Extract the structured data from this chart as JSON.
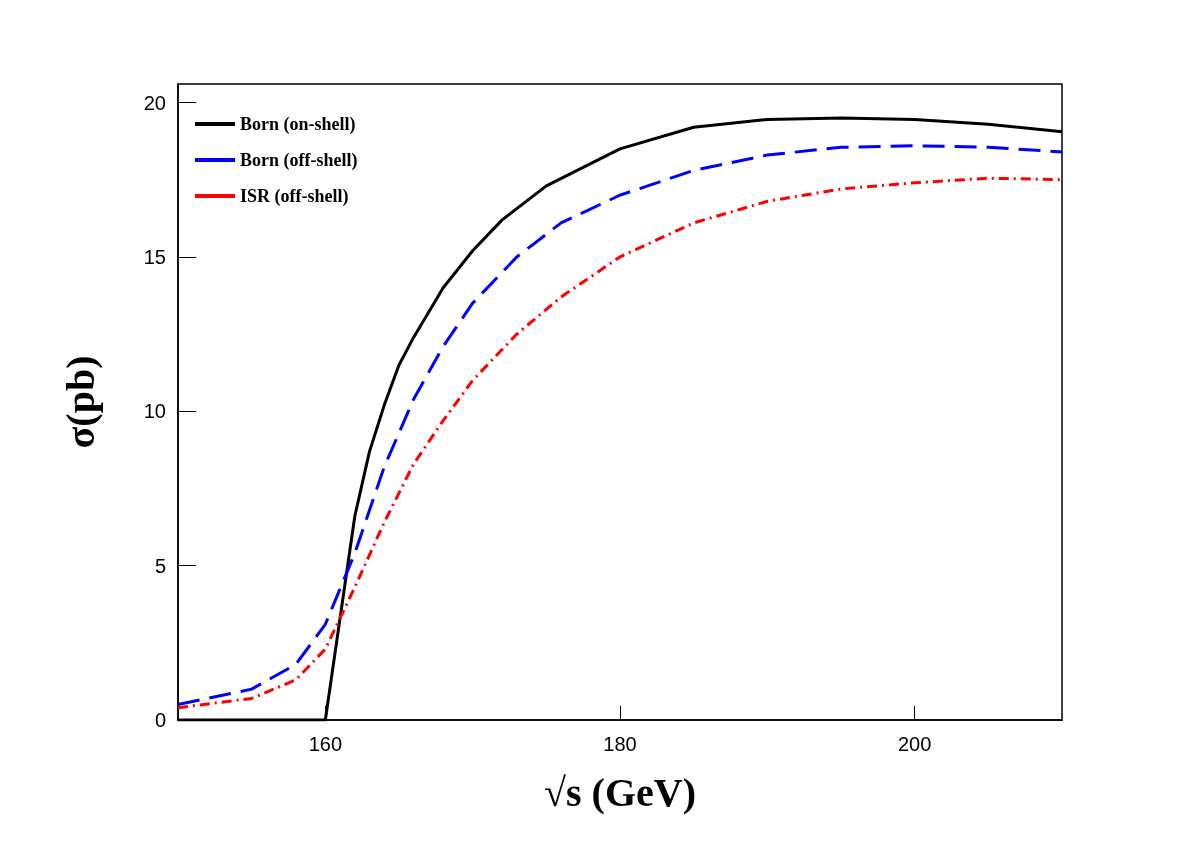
{
  "chart_data": {
    "type": "line",
    "xlabel": "√s (GeV)",
    "ylabel": "σ(pb)",
    "xlim": [
      150,
      210
    ],
    "xticks": [
      160,
      180,
      200
    ],
    "ylim": [
      0,
      20.6
    ],
    "yticks": [
      0,
      5,
      10,
      15,
      20
    ],
    "grid": false,
    "legend": "top left",
    "marker": "none",
    "series": [
      {
        "name": "Born (on-shell)",
        "color": "#000000",
        "line_style": "solid",
        "x": [
          150,
          160,
          162,
          163,
          164,
          165,
          166,
          168,
          170,
          172,
          175,
          180,
          185,
          190,
          195,
          200,
          205,
          210
        ],
        "values": [
          0,
          0,
          6.6,
          8.7,
          10.2,
          11.5,
          12.4,
          14.0,
          15.2,
          16.2,
          17.3,
          18.5,
          19.2,
          19.45,
          19.5,
          19.45,
          19.3,
          19.05
        ]
      },
      {
        "name": "Born (off-shell)",
        "color": "#0000ff",
        "line_style": "dashed",
        "x": [
          150,
          155,
          158,
          160,
          162,
          164,
          166,
          168,
          170,
          173,
          176,
          180,
          185,
          190,
          195,
          200,
          205,
          210
        ],
        "values": [
          0.5,
          1.0,
          1.8,
          3.1,
          5.4,
          8.2,
          10.4,
          12.1,
          13.5,
          15.0,
          16.1,
          17.0,
          17.8,
          18.3,
          18.55,
          18.6,
          18.55,
          18.4
        ]
      },
      {
        "name": "ISR (off-shell)",
        "color": "#ff0000",
        "line_style": "dashdot",
        "x": [
          150,
          155,
          158,
          160,
          162,
          164,
          166,
          168,
          170,
          173,
          176,
          180,
          185,
          190,
          195,
          200,
          205,
          210
        ],
        "values": [
          0.4,
          0.7,
          1.3,
          2.3,
          4.3,
          6.4,
          8.3,
          9.7,
          11.0,
          12.5,
          13.7,
          15.0,
          16.1,
          16.8,
          17.2,
          17.4,
          17.55,
          17.5
        ]
      }
    ]
  }
}
